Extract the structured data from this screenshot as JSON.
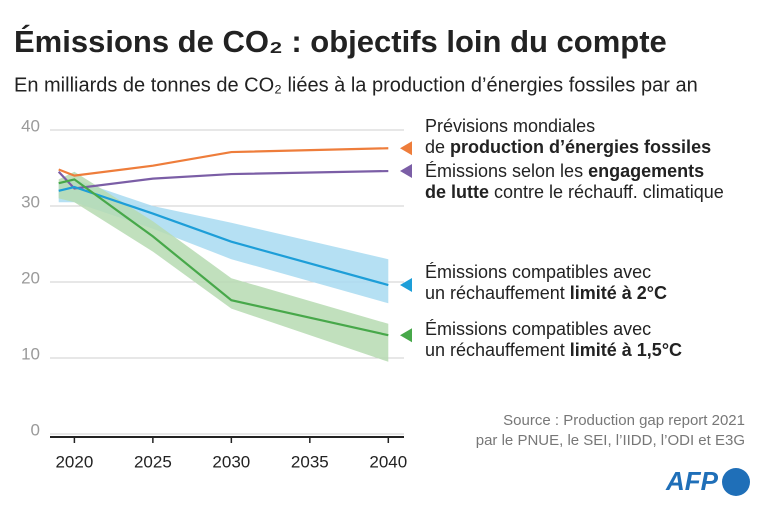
{
  "chart_data": {
    "type": "line",
    "title": "Émissions de CO₂ : objectifs loin du compte",
    "subtitle": "En milliards de tonnes de CO₂ liées à la production d’énergies fossiles par an",
    "x": [
      2019,
      2020,
      2025,
      2030,
      2040
    ],
    "xlim": [
      2018,
      2041
    ],
    "xticks": [
      2020,
      2025,
      2030,
      2035,
      2040
    ],
    "ylim": [
      0,
      40
    ],
    "yticks": [
      0,
      10,
      20,
      30,
      40
    ],
    "grid": true,
    "series": [
      {
        "name": [
          [
            {
              "text": "Prévisions mondiales",
              "bold": false
            }
          ],
          [
            {
              "text": "de ",
              "bold": false
            },
            {
              "text": "production d’énergies fossiles",
              "bold": true
            }
          ]
        ],
        "color": "#ee7d3b",
        "values": [
          34.8,
          34,
          35.3,
          37.1,
          37.6
        ]
      },
      {
        "name": [
          [
            {
              "text": "Émissions selon les ",
              "bold": false
            },
            {
              "text": "engagements",
              "bold": true
            }
          ],
          [
            {
              "text": "de lutte",
              "bold": true
            },
            {
              "text": " contre le réchauff. climatique",
              "bold": false
            }
          ]
        ],
        "color": "#7b5ea6",
        "values": [
          34.5,
          32.3,
          33.6,
          34.2,
          34.6
        ]
      },
      {
        "name": [
          [
            {
              "text": "Émissions compatibles avec",
              "bold": false
            }
          ],
          [
            {
              "text": "un réchauffement ",
              "bold": false
            },
            {
              "text": "limité à 2°C",
              "bold": true
            }
          ]
        ],
        "color": "#1d9ed8",
        "band_color": "#a8dbf1",
        "values": [
          32,
          32.5,
          29,
          25.3,
          19.6
        ],
        "band": {
          "upper": [
            33,
            33.5,
            30,
            27.8,
            23
          ],
          "lower": [
            30.5,
            30.5,
            27,
            23,
            17.2
          ]
        }
      },
      {
        "name": [
          [
            {
              "text": "Émissions compatibles avec",
              "bold": false
            }
          ],
          [
            {
              "text": "un réchauffement ",
              "bold": false
            },
            {
              "text": "limité à 1,5°C",
              "bold": true
            }
          ]
        ],
        "color": "#47a84a",
        "band_color": "#b6dbb1",
        "values": [
          33,
          33.5,
          26,
          17.6,
          13
        ],
        "band": {
          "upper": [
            33.5,
            34.5,
            28,
            20.5,
            14.5
          ],
          "lower": [
            31,
            30.5,
            24,
            16.5,
            9.5
          ]
        }
      }
    ],
    "source": [
      "Source : Production gap report 2021",
      "par le PNUE, le SEI, l’IIDD, l’ODI et E3G"
    ],
    "logo": "AFP"
  }
}
